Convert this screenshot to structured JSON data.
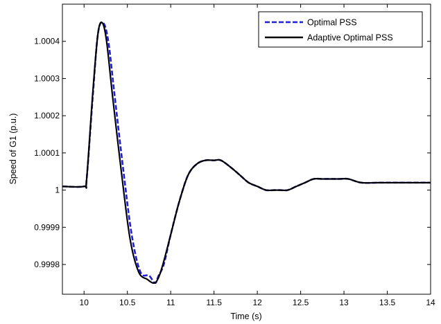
{
  "chart_data": {
    "type": "line",
    "title": "",
    "xlabel": "Time (s)",
    "ylabel": "Speed of G1 (p.u.)",
    "xlim": [
      9.75,
      14
    ],
    "ylim": [
      0.99972,
      1.0005
    ],
    "x_ticks": [
      10,
      10.5,
      11,
      11.5,
      12,
      12.5,
      13,
      13.5,
      14
    ],
    "x_tick_labels": [
      "10",
      "10.5",
      "11",
      "11.5",
      "12",
      "12.5",
      "13",
      "13.5",
      "14"
    ],
    "y_ticks": [
      0.9998,
      0.9999,
      1.0,
      1.0001,
      1.0002,
      1.0003,
      1.0004
    ],
    "y_tick_labels": [
      "0.9998",
      "0.9999",
      "1",
      "1.0001",
      "1.0002",
      "1.0003",
      "1.0004"
    ],
    "grid": false,
    "legend_position": "top-right",
    "series": [
      {
        "name": "Optimal PSS",
        "color": "#1f1fd6",
        "style": "dashed",
        "x": [
          9.75,
          10.0,
          10.03,
          10.1,
          10.16,
          10.22,
          10.28,
          10.35,
          10.45,
          10.55,
          10.65,
          10.75,
          10.82,
          10.86,
          10.92,
          11.0,
          11.1,
          11.2,
          11.3,
          11.4,
          11.5,
          11.58,
          11.7,
          11.8,
          11.9,
          12.0,
          12.1,
          12.2,
          12.26,
          12.35,
          12.45,
          12.55,
          12.65,
          12.75,
          12.85,
          12.95,
          13.05,
          13.2,
          13.4,
          13.6,
          13.8,
          14.0
        ],
        "y": [
          1.00001,
          1.00001,
          1.00003,
          1.00025,
          1.00042,
          1.00045,
          1.0004,
          1.00026,
          1.00006,
          0.99988,
          0.99978,
          0.99977,
          0.99975,
          0.99977,
          0.9998,
          0.99988,
          0.99997,
          1.00004,
          1.00007,
          1.00008,
          1.00008,
          1.00008,
          1.00006,
          1.00004,
          1.00002,
          1.00001,
          1.0,
          1.0,
          1.0,
          1.0,
          1.00001,
          1.00002,
          1.00003,
          1.00003,
          1.00003,
          1.00003,
          1.00003,
          1.00002,
          1.00002,
          1.00002,
          1.00002,
          1.00002
        ]
      },
      {
        "name": "Adaptive Optimal PSS",
        "color": "#000000",
        "style": "solid",
        "x": [
          9.75,
          10.0,
          10.03,
          10.1,
          10.16,
          10.21,
          10.26,
          10.33,
          10.43,
          10.53,
          10.63,
          10.73,
          10.8,
          10.85,
          10.91,
          11.0,
          11.1,
          11.2,
          11.3,
          11.4,
          11.5,
          11.58,
          11.7,
          11.8,
          11.9,
          12.0,
          12.1,
          12.2,
          12.26,
          12.35,
          12.45,
          12.55,
          12.65,
          12.75,
          12.85,
          12.95,
          13.05,
          13.2,
          13.4,
          13.6,
          13.8,
          14.0
        ],
        "y": [
          1.00001,
          1.00001,
          1.00003,
          1.00026,
          1.00042,
          1.00045,
          1.0004,
          1.00025,
          1.00005,
          0.99987,
          0.99978,
          0.99976,
          0.99975,
          0.99976,
          0.9998,
          0.99988,
          0.99997,
          1.00004,
          1.00007,
          1.00008,
          1.00008,
          1.00008,
          1.00006,
          1.00004,
          1.00002,
          1.00001,
          1.0,
          1.0,
          1.0,
          1.0,
          1.00001,
          1.00002,
          1.00003,
          1.00003,
          1.00003,
          1.00003,
          1.00003,
          1.00002,
          1.00002,
          1.00002,
          1.00002,
          1.00002
        ]
      }
    ]
  }
}
